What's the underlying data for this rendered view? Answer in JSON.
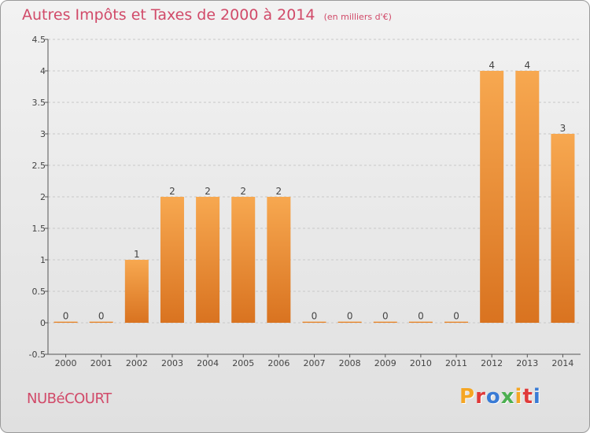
{
  "title": "Autres Impôts et Taxes de 2000 à 2014",
  "unit": "(en milliers d'€)",
  "town": "NUBéCOURT",
  "logo": {
    "text": "Proxiti",
    "colors": [
      "#f5a623",
      "#e03a3a",
      "#3a7bd5",
      "#4caf50",
      "#f5a623",
      "#e03a3a",
      "#3a7bd5"
    ]
  },
  "colors": {
    "bar_light": "#f7a850",
    "bar_dark": "#d97320",
    "grid": "#c8c8c8",
    "title": "#d14a69"
  },
  "chart_data": {
    "type": "bar",
    "categories": [
      "2000",
      "2001",
      "2002",
      "2003",
      "2004",
      "2005",
      "2006",
      "2007",
      "2008",
      "2009",
      "2010",
      "2011",
      "2012",
      "2013",
      "2014"
    ],
    "values": [
      0,
      0,
      1,
      2,
      2,
      2,
      2,
      0,
      0,
      0,
      0,
      0,
      4,
      4,
      3
    ],
    "data_labels": [
      "0",
      "0",
      "1",
      "2",
      "2",
      "2",
      "2",
      "0",
      "0",
      "0",
      "0",
      "0",
      "4",
      "4",
      "3"
    ],
    "yticks": [
      "-0.5",
      "0",
      "0.5",
      "1",
      "1.5",
      "2",
      "2.5",
      "3",
      "3.5",
      "4",
      "4.5"
    ],
    "ylim": [
      -0.5,
      4.5
    ],
    "grid": "horizontal dashed"
  }
}
